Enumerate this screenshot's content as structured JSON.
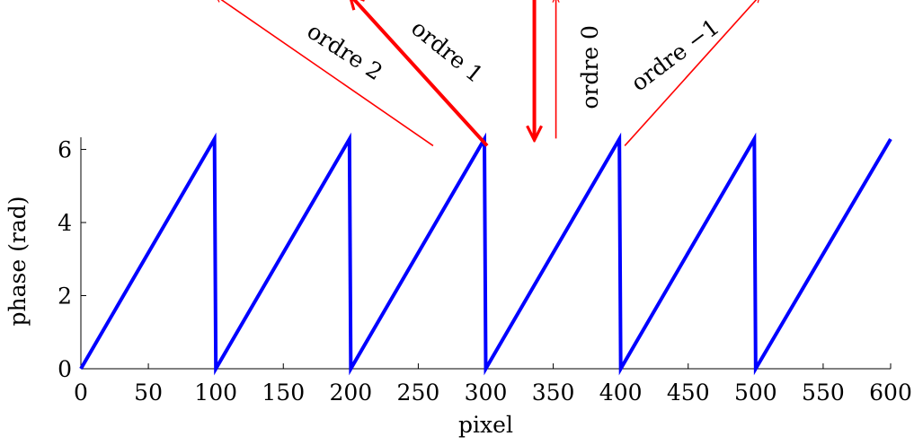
{
  "chart_data": {
    "type": "line",
    "title": "",
    "xlabel": "pixel",
    "ylabel": "phase (rad)",
    "xlim": [
      0,
      600
    ],
    "ylim": [
      0,
      6.2832
    ],
    "x_ticks": [
      0,
      50,
      100,
      150,
      200,
      250,
      300,
      350,
      400,
      450,
      500,
      550,
      600
    ],
    "x_tick_labels": [
      "0",
      "50",
      "100",
      "150",
      "200",
      "250",
      "300",
      "350",
      "400",
      "450",
      "500",
      "550",
      "600"
    ],
    "y_ticks": [
      0,
      2,
      4,
      6
    ],
    "y_tick_labels": [
      "0",
      "2",
      "4",
      "6"
    ],
    "grid": false,
    "series": [
      {
        "color": "#0000ff",
        "x": [
          0,
          99,
          100,
          199,
          200,
          299,
          300,
          399,
          400,
          499,
          500,
          600
        ],
        "y": [
          0,
          6.2832,
          0,
          6.2832,
          0,
          6.2832,
          0,
          6.2832,
          0,
          6.2832,
          0,
          6.2832
        ]
      }
    ],
    "annotations": {
      "color": "#ff0000",
      "incident_arrow": {
        "x": 336,
        "y_start": 10.2,
        "y_end": 6.3
      },
      "diffracted_arrows": [
        {
          "label": "ordre 0",
          "x_start": 352,
          "y_start": 6.3,
          "x_end": 352,
          "y_end": 10.2,
          "bold": false,
          "label_rotation": -90
        },
        {
          "label": "ordre 1",
          "x_start": 301,
          "y_start": 6.1,
          "x_end": 200,
          "y_end": 10.2,
          "bold": true,
          "label_rotation": 39
        },
        {
          "label": "ordre 2",
          "x_start": 261,
          "y_start": 6.1,
          "x_end": 100,
          "y_end": 10.2,
          "bold": false,
          "label_rotation": 33
        },
        {
          "label": "ordre −1",
          "x_start": 403,
          "y_start": 6.1,
          "x_end": 503,
          "y_end": 10.2,
          "bold": false,
          "label_rotation": -37
        }
      ]
    }
  }
}
